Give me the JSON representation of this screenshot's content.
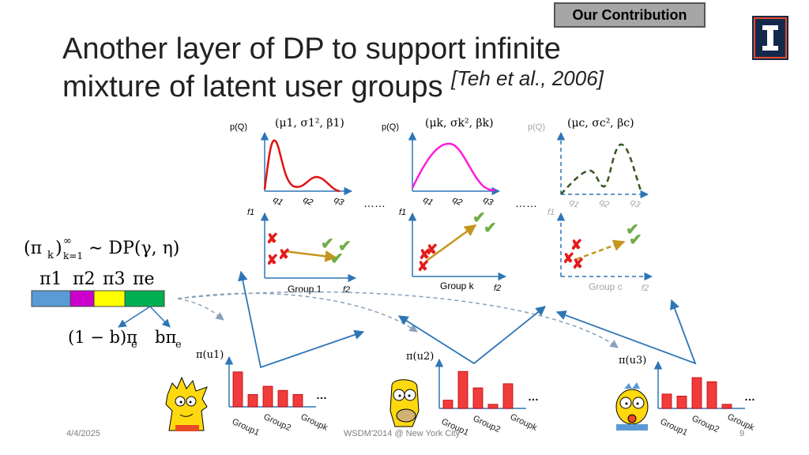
{
  "header": {
    "badge": "Our Contribution",
    "title_line1": "Another layer of DP to support infinite",
    "title_line2": "mixture of latent user groups",
    "citation": "[Teh et al., 2006]"
  },
  "colors": {
    "accent_blue": "#2e75b6",
    "bar_red": "#f03c3c",
    "cross": "#e41b1b",
    "check": "#70ad47",
    "arrow": "#c5961e",
    "curve_g1": "#e01010",
    "curve_gk": "#ff1adf",
    "curve_gc": "#375623",
    "grey": "#a6a6a6"
  },
  "dp": {
    "formula_lhs": "(π",
    "formula_sub": "k",
    "formula_close": ")",
    "formula_sup_sub": "∞",
    "formula_k_eq": "k=1",
    "formula_rhs": "∼ DP(γ, η)",
    "pi_labels": [
      "π1",
      "π2",
      "π3",
      "πe"
    ],
    "stick_colors": [
      "#5b9bd5",
      "#cc00cc",
      "#ffff00",
      "#00b050"
    ],
    "split_left": "(1 − b)π",
    "split_left_sub": "e",
    "split_right": "bπ",
    "split_right_sub": "e"
  },
  "panels": [
    {
      "id": "group1",
      "ylabel": "p(Q)",
      "params": "(μ1, σ1², β1)",
      "q_labels": [
        "q1",
        "q2",
        "q3"
      ],
      "f1": "f1",
      "f2": "f2",
      "group_label": "Group 1",
      "faded": false
    },
    {
      "id": "groupk",
      "ylabel": "p(Q)",
      "params": "(μk, σk², βk)",
      "q_labels": [
        "q1",
        "q2",
        "q3"
      ],
      "f1": "f1",
      "f2": "f2",
      "group_label": "Group k",
      "faded": false
    },
    {
      "id": "groupc",
      "ylabel": "p(Q)",
      "params": "(μc, σc², βc)",
      "q_labels": [
        "q1",
        "q2",
        "q3"
      ],
      "f1": "f1",
      "f2": "f2",
      "group_label": "Group c",
      "faded": true
    }
  ],
  "ellipsis": "……",
  "users": [
    {
      "id": "u1",
      "label": "π(u1)",
      "character": "Lisa",
      "bar_values": [
        0.85,
        0.3,
        0.5,
        0.4,
        0.3
      ],
      "x_labels": [
        "Group1",
        "Group2",
        "Groupk"
      ],
      "more": "…"
    },
    {
      "id": "u2",
      "label": "π(u2)",
      "character": "Homer",
      "bar_values": [
        0.2,
        0.9,
        0.5,
        0.1,
        0.6
      ],
      "x_labels": [
        "Group1",
        "Group2",
        "Groupk"
      ],
      "more": "…"
    },
    {
      "id": "u3",
      "label": "π(u3)",
      "character": "Maggie",
      "bar_values": [
        0.35,
        0.3,
        0.75,
        0.65,
        0.1
      ],
      "x_labels": [
        "Group1",
        "Group2",
        "Groupk"
      ],
      "more": "…"
    }
  ],
  "footer": {
    "date": "4/4/2025",
    "venue": "WSDM'2014 @ New York City",
    "page": "9"
  }
}
